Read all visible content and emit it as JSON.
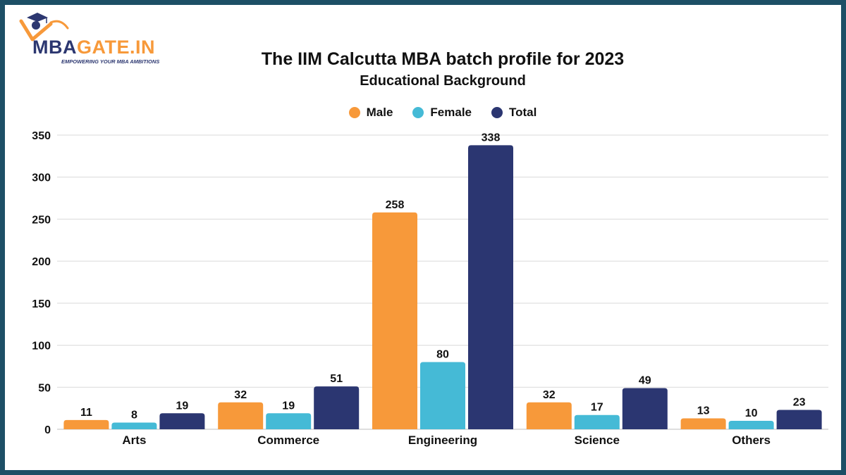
{
  "brand": {
    "name_part1": "MBA",
    "name_part2": "GATE.IN",
    "tagline": "EMPOWERING YOUR MBA AMBITIONS"
  },
  "chart_data": {
    "type": "bar",
    "title": "The IIM Calcutta MBA batch profile for 2023",
    "subtitle": "Educational Background",
    "categories": [
      "Arts",
      "Commerce",
      "Engineering",
      "Science",
      "Others"
    ],
    "series": [
      {
        "name": "Male",
        "color": "#f7993a",
        "values": [
          11,
          32,
          258,
          32,
          13
        ]
      },
      {
        "name": "Female",
        "color": "#45bad6",
        "values": [
          8,
          19,
          80,
          17,
          10
        ]
      },
      {
        "name": "Total",
        "color": "#2b3671",
        "values": [
          19,
          51,
          338,
          49,
          23
        ]
      }
    ],
    "ylim": [
      0,
      350
    ],
    "yticks": [
      0,
      50,
      100,
      150,
      200,
      250,
      300,
      350
    ],
    "grid": true,
    "legend": "top-center",
    "data_labels": true
  }
}
